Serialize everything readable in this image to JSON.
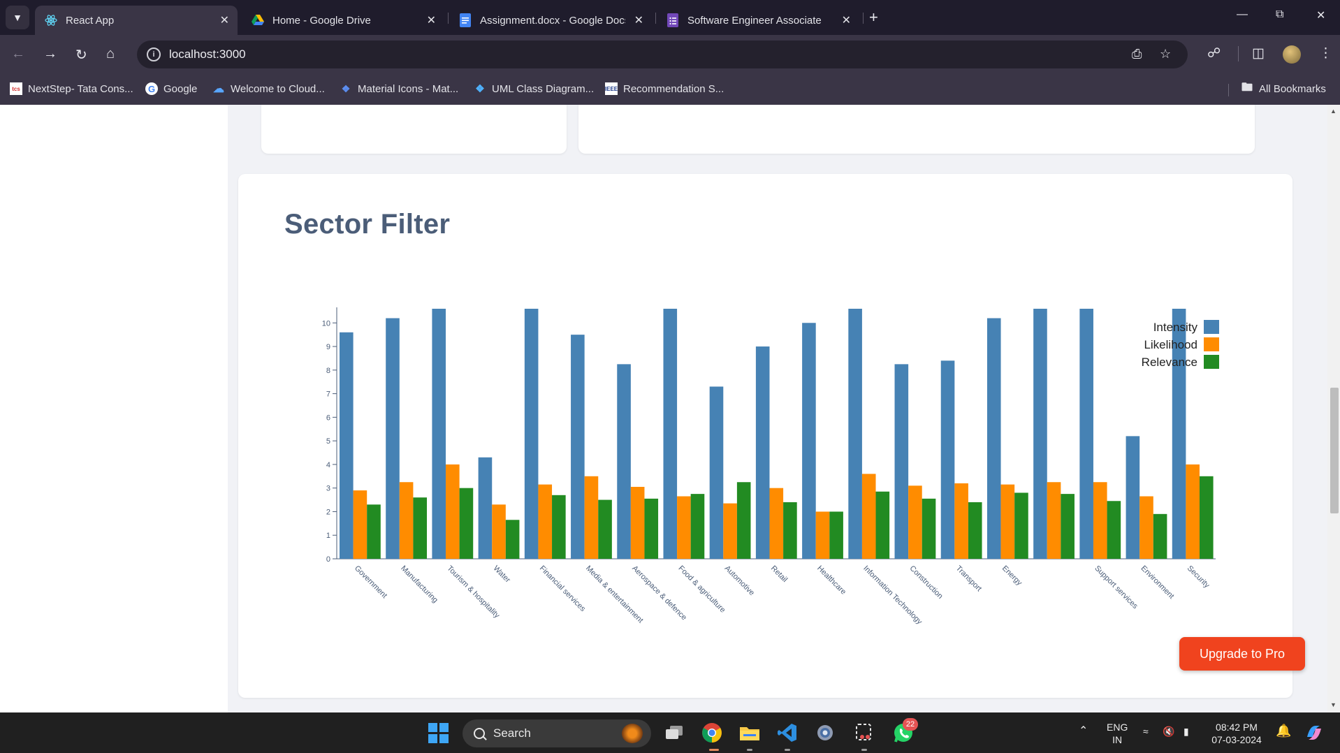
{
  "browser": {
    "tabs": [
      {
        "title": "React App",
        "icon": "react-icon",
        "active": true
      },
      {
        "title": "Home - Google Drive",
        "icon": "google-drive-icon",
        "active": false
      },
      {
        "title": "Assignment.docx - Google Docs",
        "icon": "google-docs-icon",
        "active": false
      },
      {
        "title": "Software Engineer Associate",
        "icon": "google-forms-icon",
        "active": false
      }
    ],
    "url": "localhost:3000",
    "bookmarks": [
      {
        "label": "NextStep- Tata Cons...",
        "icon": "tcs-icon"
      },
      {
        "label": "Google",
        "icon": "google-icon"
      },
      {
        "label": "Welcome to Cloud...",
        "icon": "cloud-icon"
      },
      {
        "label": "Material Icons - Mat...",
        "icon": "material-icons-icon"
      },
      {
        "label": "UML Class Diagram...",
        "icon": "uml-icon"
      },
      {
        "label": "Recommendation S...",
        "icon": "ieee-icon"
      }
    ],
    "all_bookmarks_label": "All Bookmarks"
  },
  "page": {
    "section_title": "Sector Filter",
    "upgrade_label": "Upgrade to Pro"
  },
  "chart_data": {
    "type": "bar",
    "categories": [
      "Government",
      "Manufacturing",
      "Tourism & hospitality",
      "Water",
      "Financial services",
      "Media & entertainment",
      "Aerospace & defence",
      "Food & agriculture",
      "Automotive",
      "Retail",
      "Healthcare",
      "Information Technology",
      "Construction",
      "Transport",
      "Energy",
      "",
      "Support services",
      "Environment",
      "Security"
    ],
    "series": [
      {
        "name": "Intensity",
        "color": "#4682b4",
        "values": [
          9.6,
          10.2,
          10.6,
          4.3,
          10.6,
          9.5,
          8.25,
          10.6,
          7.3,
          9.0,
          10.0,
          10.6,
          8.25,
          8.4,
          10.2,
          10.6,
          10.6,
          5.2,
          10.6
        ]
      },
      {
        "name": "Likelihood",
        "color": "#ff8c00",
        "values": [
          2.9,
          3.25,
          4.0,
          2.3,
          3.15,
          3.5,
          3.05,
          2.65,
          2.35,
          3.0,
          2.0,
          3.6,
          3.1,
          3.2,
          3.15,
          3.25,
          3.25,
          2.65,
          4.0
        ]
      },
      {
        "name": "Relevance",
        "color": "#228b22",
        "values": [
          2.3,
          2.6,
          3.0,
          1.65,
          2.7,
          2.5,
          2.55,
          2.75,
          3.25,
          2.4,
          2.0,
          2.85,
          2.55,
          2.4,
          2.8,
          2.75,
          2.45,
          1.9,
          3.5
        ]
      }
    ],
    "y_ticks": [
      0,
      1,
      2,
      3,
      4,
      5,
      6,
      7,
      8,
      9,
      10
    ],
    "ylim": [
      0,
      10.6
    ],
    "legend_position": "top-right",
    "grid": false
  },
  "taskbar": {
    "search_label": "Search",
    "whatsapp_badge": "22",
    "lang_top": "ENG",
    "lang_bottom": "IN",
    "time": "08:42 PM",
    "date": "07-03-2024"
  }
}
